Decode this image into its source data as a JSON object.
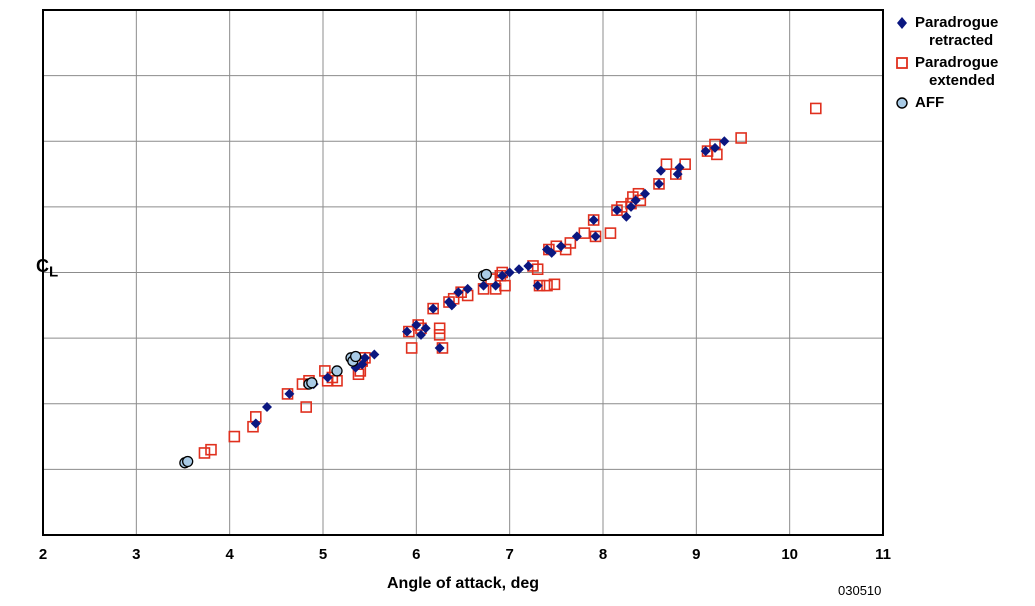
{
  "chart_data": {
    "type": "scatter",
    "title": "",
    "xlabel": "Angle of attack, deg",
    "ylabel_main": "C",
    "ylabel_sub": "L",
    "xlim": [
      2,
      11
    ],
    "ylim": [
      0,
      8
    ],
    "grid": true,
    "y_tick_labels_shown": false,
    "x_ticks": [
      "2",
      "3",
      "4",
      "5",
      "6",
      "7",
      "8",
      "9",
      "10",
      "11"
    ],
    "legend_position": "right",
    "figure_id": "030510",
    "series": [
      {
        "name": "Paradrogue retracted",
        "marker": "diamond",
        "color": "#0b1780",
        "points": [
          [
            4.28,
            1.7
          ],
          [
            4.4,
            1.95
          ],
          [
            4.64,
            2.15
          ],
          [
            4.9,
            2.3
          ],
          [
            5.05,
            2.4
          ],
          [
            5.35,
            2.55
          ],
          [
            5.42,
            2.6
          ],
          [
            5.45,
            2.7
          ],
          [
            5.55,
            2.75
          ],
          [
            5.9,
            3.1
          ],
          [
            6.0,
            3.2
          ],
          [
            6.05,
            3.05
          ],
          [
            6.1,
            3.15
          ],
          [
            6.18,
            3.45
          ],
          [
            6.25,
            2.85
          ],
          [
            6.35,
            3.55
          ],
          [
            6.38,
            3.5
          ],
          [
            6.45,
            3.7
          ],
          [
            6.55,
            3.75
          ],
          [
            6.72,
            3.8
          ],
          [
            6.85,
            3.8
          ],
          [
            6.92,
            3.95
          ],
          [
            7.0,
            4.0
          ],
          [
            7.1,
            4.05
          ],
          [
            7.2,
            4.1
          ],
          [
            7.3,
            3.8
          ],
          [
            7.4,
            4.35
          ],
          [
            7.45,
            4.3
          ],
          [
            7.55,
            4.4
          ],
          [
            7.72,
            4.55
          ],
          [
            7.9,
            4.8
          ],
          [
            7.92,
            4.55
          ],
          [
            8.15,
            4.95
          ],
          [
            8.25,
            4.85
          ],
          [
            8.3,
            5.0
          ],
          [
            8.35,
            5.1
          ],
          [
            8.45,
            5.2
          ],
          [
            8.6,
            5.35
          ],
          [
            8.62,
            5.55
          ],
          [
            8.8,
            5.5
          ],
          [
            8.82,
            5.6
          ],
          [
            9.1,
            5.85
          ],
          [
            9.2,
            5.9
          ],
          [
            9.3,
            6.0
          ]
        ]
      },
      {
        "name": "Paradrogue extended",
        "marker": "square-open",
        "color": "#e0301e",
        "points": [
          [
            3.73,
            1.25
          ],
          [
            3.8,
            1.3
          ],
          [
            4.05,
            1.5
          ],
          [
            4.25,
            1.65
          ],
          [
            4.28,
            1.8
          ],
          [
            4.62,
            2.15
          ],
          [
            4.78,
            2.3
          ],
          [
            4.82,
            1.95
          ],
          [
            4.85,
            2.35
          ],
          [
            5.02,
            2.5
          ],
          [
            5.05,
            2.35
          ],
          [
            5.1,
            2.4
          ],
          [
            5.15,
            2.35
          ],
          [
            5.38,
            2.45
          ],
          [
            5.4,
            2.5
          ],
          [
            5.42,
            2.65
          ],
          [
            5.45,
            2.7
          ],
          [
            5.92,
            3.1
          ],
          [
            5.95,
            2.85
          ],
          [
            6.02,
            3.2
          ],
          [
            6.05,
            3.15
          ],
          [
            6.18,
            3.45
          ],
          [
            6.25,
            3.15
          ],
          [
            6.25,
            3.05
          ],
          [
            6.28,
            2.85
          ],
          [
            6.35,
            3.55
          ],
          [
            6.4,
            3.6
          ],
          [
            6.48,
            3.7
          ],
          [
            6.55,
            3.65
          ],
          [
            6.72,
            3.75
          ],
          [
            6.8,
            3.9
          ],
          [
            6.85,
            3.75
          ],
          [
            6.9,
            3.95
          ],
          [
            6.92,
            4.0
          ],
          [
            6.95,
            3.8
          ],
          [
            7.25,
            4.1
          ],
          [
            7.3,
            4.05
          ],
          [
            7.32,
            3.8
          ],
          [
            7.4,
            3.8
          ],
          [
            7.42,
            4.35
          ],
          [
            7.48,
            3.82
          ],
          [
            7.5,
            4.4
          ],
          [
            7.6,
            4.35
          ],
          [
            7.65,
            4.45
          ],
          [
            7.8,
            4.6
          ],
          [
            7.9,
            4.8
          ],
          [
            7.92,
            4.55
          ],
          [
            8.08,
            4.6
          ],
          [
            8.15,
            4.95
          ],
          [
            8.2,
            5.0
          ],
          [
            8.3,
            5.05
          ],
          [
            8.32,
            5.15
          ],
          [
            8.38,
            5.2
          ],
          [
            8.4,
            5.1
          ],
          [
            8.6,
            5.35
          ],
          [
            8.68,
            5.65
          ],
          [
            8.78,
            5.5
          ],
          [
            8.88,
            5.65
          ],
          [
            9.12,
            5.85
          ],
          [
            9.2,
            5.95
          ],
          [
            9.22,
            5.8
          ],
          [
            9.48,
            6.05
          ],
          [
            10.28,
            6.5
          ]
        ]
      },
      {
        "name": "AFF",
        "marker": "circle",
        "color": "#a9cbe6",
        "points": [
          [
            3.52,
            1.1
          ],
          [
            3.55,
            1.12
          ],
          [
            4.85,
            2.3
          ],
          [
            4.88,
            2.32
          ],
          [
            5.15,
            2.5
          ],
          [
            5.3,
            2.7
          ],
          [
            5.32,
            2.65
          ],
          [
            5.35,
            2.72
          ],
          [
            6.72,
            3.95
          ],
          [
            6.75,
            3.97
          ]
        ]
      }
    ]
  }
}
